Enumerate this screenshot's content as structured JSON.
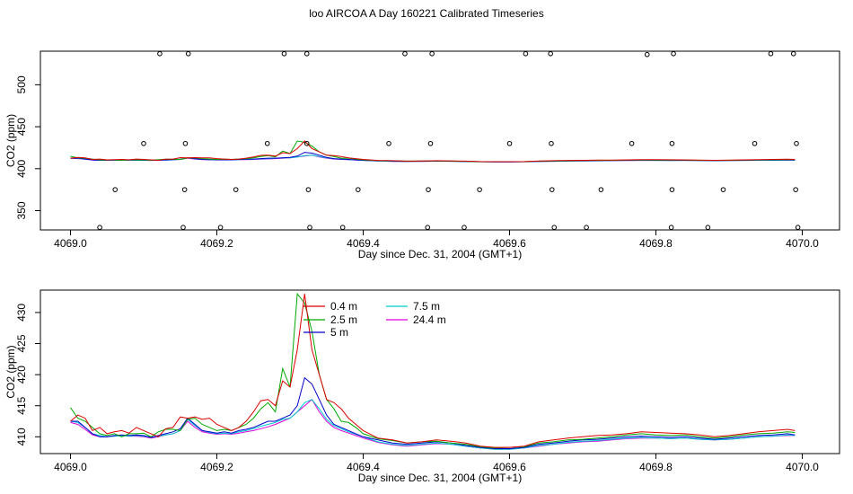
{
  "title": "loo AIRCOA A  Day 160221  Calibrated Timeseries",
  "colors": {
    "0.4 m": "#dd0000",
    "2.5 m": "#00aa00",
    "5 m": "#0000cc",
    "7.5 m": "#00cccc",
    "24.4 m": "#dd00dd",
    "axis": "#000000"
  },
  "chart_data": [
    {
      "type": "line",
      "panel": "top",
      "xlabel": "Day since Dec. 31, 2004 (GMT+1)",
      "ylabel": "CO2 (ppm)",
      "xlim": [
        4069.0,
        4070.0
      ],
      "ylim": [
        327,
        540
      ],
      "xticks": [
        "4069.0",
        "4069.2",
        "4069.4",
        "4069.6",
        "4069.8",
        "4070.0"
      ],
      "yticks": [
        "350",
        "400",
        "450",
        "500"
      ],
      "series_names": [
        "0.4 m",
        "2.5 m",
        "5 m",
        "7.5 m",
        "24.4 m"
      ],
      "x": [
        4069.0,
        4069.01,
        4069.02,
        4069.03,
        4069.04,
        4069.05,
        4069.06,
        4069.07,
        4069.08,
        4069.09,
        4069.1,
        4069.11,
        4069.12,
        4069.13,
        4069.14,
        4069.15,
        4069.16,
        4069.17,
        4069.18,
        4069.19,
        4069.2,
        4069.21,
        4069.22,
        4069.23,
        4069.24,
        4069.25,
        4069.26,
        4069.27,
        4069.28,
        4069.29,
        4069.3,
        4069.31,
        4069.32,
        4069.33,
        4069.34,
        4069.35,
        4069.36,
        4069.37,
        4069.38,
        4069.39,
        4069.4,
        4069.42,
        4069.44,
        4069.46,
        4069.48,
        4069.5,
        4069.52,
        4069.54,
        4069.56,
        4069.58,
        4069.6,
        4069.62,
        4069.64,
        4069.66,
        4069.68,
        4069.7,
        4069.72,
        4069.74,
        4069.76,
        4069.78,
        4069.8,
        4069.82,
        4069.84,
        4069.86,
        4069.88,
        4069.9,
        4069.92,
        4069.94,
        4069.96,
        4069.98,
        4069.99
      ],
      "series": [
        {
          "name": "0.4 m",
          "values": [
            412.5,
            413.5,
            413.0,
            411.0,
            411.5,
            410.5,
            410.8,
            411.0,
            410.6,
            411.5,
            411.0,
            410.5,
            410.0,
            411.3,
            411.5,
            413.2,
            413.0,
            413.2,
            412.8,
            413.0,
            412.0,
            411.5,
            411.0,
            411.5,
            412.5,
            414.0,
            415.8,
            416.0,
            415.0,
            419.0,
            418.0,
            424.0,
            433.0,
            424.0,
            420.0,
            416.0,
            415.5,
            414.5,
            413.0,
            412.0,
            411.0,
            409.8,
            409.5,
            409.0,
            409.2,
            409.5,
            409.3,
            409.0,
            408.5,
            408.3,
            408.3,
            408.5,
            409.2,
            409.5,
            409.8,
            410.0,
            410.2,
            410.3,
            410.5,
            410.8,
            410.7,
            410.6,
            410.5,
            410.3,
            410.0,
            410.2,
            410.5,
            410.8,
            411.0,
            411.2,
            411.0
          ]
        },
        {
          "name": "2.5 m",
          "values": [
            414.7,
            413.0,
            412.5,
            411.5,
            410.5,
            410.2,
            410.5,
            410.0,
            410.5,
            410.5,
            410.6,
            410.0,
            410.8,
            411.2,
            411.2,
            411.0,
            412.8,
            413.0,
            412.0,
            411.5,
            411.0,
            411.2,
            411.0,
            411.5,
            412.0,
            413.0,
            414.5,
            415.5,
            414.0,
            421.0,
            418.0,
            433.0,
            431.5,
            427.0,
            420.0,
            416.0,
            414.5,
            412.5,
            412.3,
            411.5,
            410.5,
            409.7,
            409.4,
            409.0,
            409.2,
            409.3,
            409.0,
            408.8,
            408.4,
            408.2,
            408.3,
            408.4,
            409.0,
            409.2,
            409.5,
            409.6,
            409.8,
            410.0,
            410.3,
            410.5,
            410.3,
            410.2,
            410.3,
            410.0,
            409.8,
            410.0,
            410.3,
            410.5,
            410.6,
            410.8,
            410.7
          ]
        },
        {
          "name": "5 m",
          "values": [
            412.5,
            412.5,
            411.5,
            410.5,
            410.0,
            410.0,
            410.2,
            410.3,
            410.2,
            410.3,
            410.2,
            409.9,
            410.2,
            410.5,
            410.8,
            411.3,
            413.0,
            412.0,
            411.0,
            410.8,
            410.6,
            410.8,
            410.6,
            411.0,
            411.2,
            411.5,
            412.0,
            412.5,
            412.5,
            413.0,
            413.5,
            415.0,
            419.5,
            418.5,
            416.0,
            413.5,
            412.0,
            411.5,
            411.0,
            410.5,
            410.0,
            409.5,
            409.0,
            408.8,
            409.0,
            409.2,
            409.0,
            408.6,
            408.3,
            408.1,
            408.1,
            408.3,
            408.8,
            409.0,
            409.3,
            409.5,
            409.6,
            409.8,
            410.0,
            410.1,
            410.0,
            409.9,
            410.0,
            409.8,
            409.6,
            409.8,
            410.0,
            410.2,
            410.3,
            410.5,
            410.3
          ]
        },
        {
          "name": "7.5 m",
          "values": [
            412.5,
            412.3,
            411.5,
            410.5,
            410.2,
            410.0,
            410.1,
            410.2,
            410.1,
            410.2,
            410.1,
            409.9,
            410.1,
            410.3,
            410.5,
            411.0,
            412.8,
            411.8,
            411.0,
            410.7,
            410.5,
            410.6,
            410.5,
            410.8,
            411.0,
            411.3,
            411.7,
            412.0,
            412.3,
            412.8,
            413.0,
            414.0,
            415.5,
            416.0,
            414.5,
            412.8,
            411.8,
            411.3,
            410.8,
            410.4,
            410.0,
            409.2,
            408.8,
            408.6,
            408.8,
            409.0,
            408.8,
            408.5,
            408.2,
            408.0,
            408.0,
            408.2,
            408.6,
            408.8,
            409.1,
            409.3,
            409.4,
            409.6,
            409.8,
            409.9,
            409.8,
            409.7,
            409.8,
            409.6,
            409.5,
            409.6,
            409.8,
            410.0,
            410.1,
            410.3,
            410.2
          ]
        },
        {
          "name": "24.4 m",
          "values": [
            412.3,
            412.0,
            411.2,
            410.3,
            410.0,
            410.0,
            410.1,
            410.2,
            410.1,
            410.1,
            410.0,
            409.8,
            410.0,
            410.3,
            410.5,
            411.0,
            412.5,
            411.5,
            410.8,
            410.6,
            410.4,
            410.5,
            410.4,
            410.6,
            410.8,
            411.0,
            411.3,
            411.6,
            412.0,
            412.5,
            413.0,
            414.0,
            415.0,
            416.0,
            414.0,
            412.5,
            411.5,
            411.0,
            410.6,
            410.2,
            409.8,
            409.1,
            408.7,
            408.5,
            408.7,
            408.9,
            408.8,
            408.5,
            408.2,
            408.0,
            408.0,
            408.2,
            408.5,
            408.8,
            409.0,
            409.2,
            409.3,
            409.5,
            409.7,
            409.8,
            409.8,
            409.7,
            409.8,
            409.6,
            409.5,
            409.6,
            409.8,
            410.0,
            410.1,
            410.2,
            410.2
          ]
        }
      ],
      "outlier_points": [
        {
          "x": 4069.122,
          "y": 537
        },
        {
          "x": 4069.161,
          "y": 537
        },
        {
          "x": 4069.292,
          "y": 537
        },
        {
          "x": 4069.323,
          "y": 537
        },
        {
          "x": 4069.457,
          "y": 537
        },
        {
          "x": 4069.494,
          "y": 537
        },
        {
          "x": 4069.622,
          "y": 537
        },
        {
          "x": 4069.656,
          "y": 537
        },
        {
          "x": 4069.788,
          "y": 536
        },
        {
          "x": 4069.824,
          "y": 537
        },
        {
          "x": 4069.957,
          "y": 537
        },
        {
          "x": 4069.988,
          "y": 537
        },
        {
          "x": 4069.1,
          "y": 430
        },
        {
          "x": 4069.157,
          "y": 430
        },
        {
          "x": 4069.269,
          "y": 430
        },
        {
          "x": 4069.323,
          "y": 430
        },
        {
          "x": 4069.435,
          "y": 430
        },
        {
          "x": 4069.492,
          "y": 430
        },
        {
          "x": 4069.6,
          "y": 430
        },
        {
          "x": 4069.657,
          "y": 430
        },
        {
          "x": 4069.767,
          "y": 430
        },
        {
          "x": 4069.822,
          "y": 430
        },
        {
          "x": 4069.935,
          "y": 430
        },
        {
          "x": 4069.992,
          "y": 430
        },
        {
          "x": 4069.061,
          "y": 375
        },
        {
          "x": 4069.156,
          "y": 375
        },
        {
          "x": 4069.226,
          "y": 375
        },
        {
          "x": 4069.325,
          "y": 375
        },
        {
          "x": 4069.393,
          "y": 375
        },
        {
          "x": 4069.489,
          "y": 375
        },
        {
          "x": 4069.559,
          "y": 375
        },
        {
          "x": 4069.658,
          "y": 375
        },
        {
          "x": 4069.725,
          "y": 375
        },
        {
          "x": 4069.822,
          "y": 375
        },
        {
          "x": 4069.892,
          "y": 375
        },
        {
          "x": 4069.991,
          "y": 375
        },
        {
          "x": 4069.04,
          "y": 330
        },
        {
          "x": 4069.154,
          "y": 330
        },
        {
          "x": 4069.205,
          "y": 330
        },
        {
          "x": 4069.327,
          "y": 330
        },
        {
          "x": 4069.372,
          "y": 330
        },
        {
          "x": 4069.488,
          "y": 330
        },
        {
          "x": 4069.538,
          "y": 330
        },
        {
          "x": 4069.661,
          "y": 330
        },
        {
          "x": 4069.705,
          "y": 330
        },
        {
          "x": 4069.821,
          "y": 330
        },
        {
          "x": 4069.871,
          "y": 330
        },
        {
          "x": 4069.994,
          "y": 330
        }
      ]
    },
    {
      "type": "line",
      "panel": "bottom",
      "xlabel": "Day since Dec. 31, 2004 (GMT+1)",
      "ylabel": "CO2 (ppm)",
      "xlim": [
        4069.0,
        4070.0
      ],
      "ylim": [
        407.3,
        433.6
      ],
      "xticks": [
        "4069.0",
        "4069.2",
        "4069.4",
        "4069.6",
        "4069.8",
        "4070.0"
      ],
      "yticks": [
        "410",
        "415",
        "420",
        "425",
        "430"
      ],
      "legend": {
        "position": "top-left",
        "entries": [
          "0.4 m",
          "2.5 m",
          "5 m",
          "7.5 m",
          "24.4 m"
        ]
      },
      "same_series_as": "top"
    }
  ]
}
